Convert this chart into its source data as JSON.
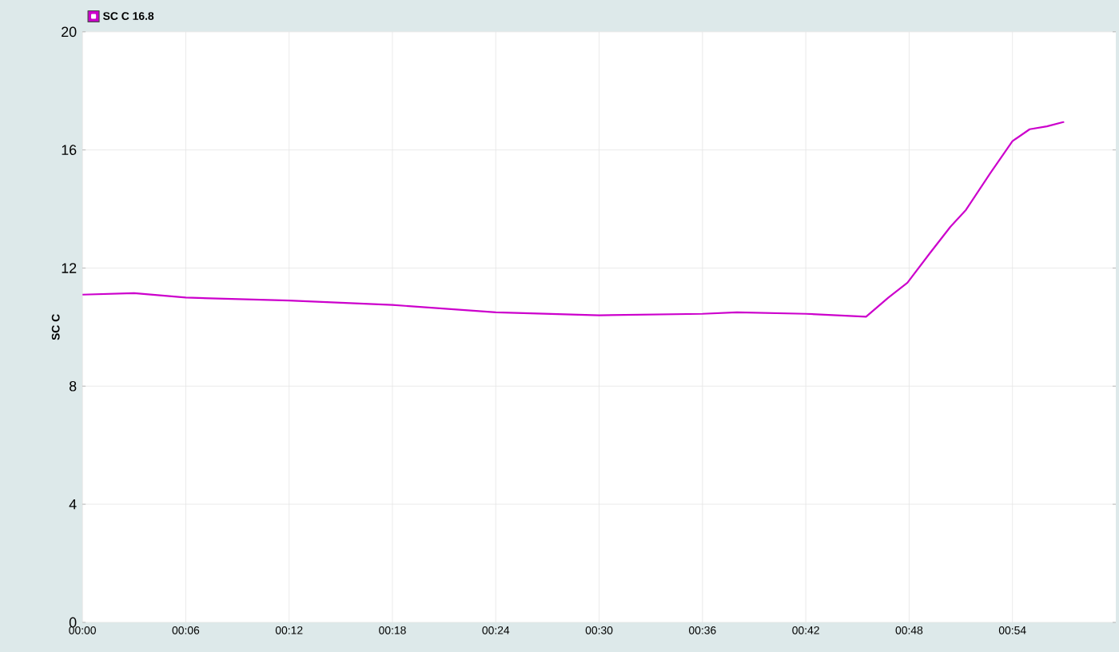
{
  "chart_data": {
    "type": "line",
    "ylabel": "SC C",
    "legend": "top left",
    "grid": true,
    "x": [
      0,
      3,
      6,
      12,
      18,
      24,
      30,
      36,
      38,
      42,
      45.5,
      46.8,
      47.9,
      49.2,
      50.4,
      51.3,
      52.7,
      54,
      55,
      56,
      57
    ],
    "series": [
      {
        "name": "SC C 16.8",
        "color": "#cc00cc",
        "values": [
          11.1,
          11.15,
          11.0,
          10.9,
          10.75,
          10.5,
          10.4,
          10.45,
          10.5,
          10.45,
          10.35,
          11.0,
          11.5,
          12.5,
          13.4,
          13.97,
          15.2,
          16.3,
          16.7,
          16.8,
          16.95
        ]
      }
    ],
    "xlim": [
      0,
      60
    ],
    "xticks": [
      {
        "value": 0,
        "label": "00:00"
      },
      {
        "value": 6,
        "label": "00:06"
      },
      {
        "value": 12,
        "label": "00:12"
      },
      {
        "value": 18,
        "label": "00:18"
      },
      {
        "value": 24,
        "label": "00:24"
      },
      {
        "value": 30,
        "label": "00:30"
      },
      {
        "value": 36,
        "label": "00:36"
      },
      {
        "value": 42,
        "label": "00:42"
      },
      {
        "value": 48,
        "label": "00:48"
      },
      {
        "value": 54,
        "label": "00:54"
      }
    ],
    "ylim": [
      0,
      20
    ],
    "yticks": [
      0,
      4,
      8,
      12,
      16,
      20
    ]
  }
}
